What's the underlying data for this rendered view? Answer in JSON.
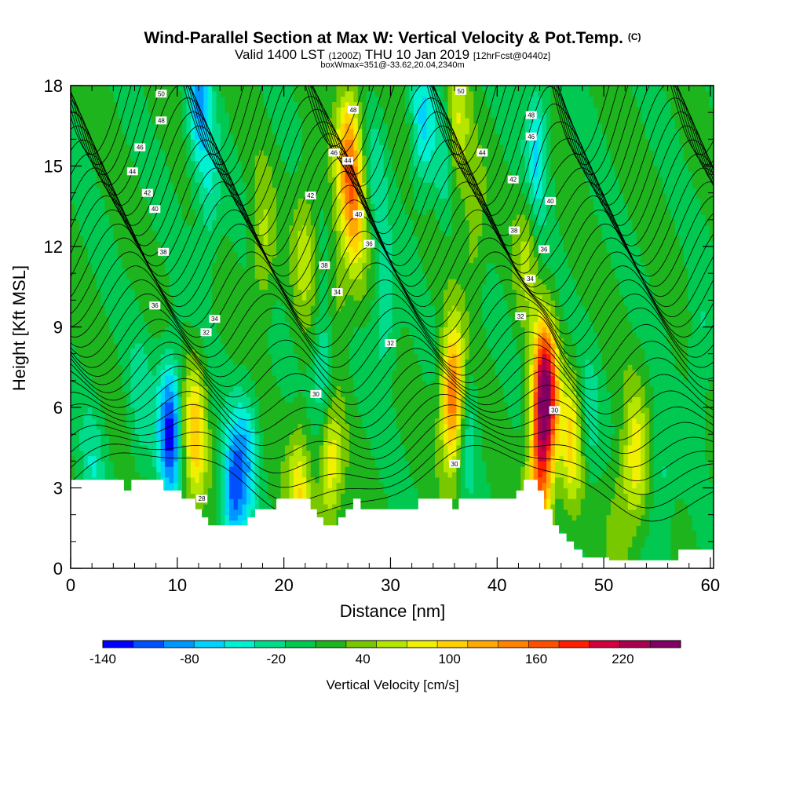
{
  "header": {
    "title": "Wind-Parallel Section at Max W: Vertical Velocity & Pot.Temp.",
    "copyright": "(C)",
    "valid_prefix": "Valid 1400 LST",
    "valid_utc": "(1200Z)",
    "valid_date": "THU 10 Jan 2019",
    "forecast": "[12hrFcst@0440z]",
    "box_info": "boxWmax=351@-33.62,20.04,2340m"
  },
  "chart_data": {
    "type": "heatmap",
    "xlabel": "Distance [nm]",
    "ylabel": "Height [Kft MSL]",
    "xlim": [
      0,
      60.3
    ],
    "ylim": [
      0,
      18
    ],
    "x_ticks": [
      "0",
      "10",
      "20",
      "30",
      "40",
      "50",
      "60"
    ],
    "y_ticks": [
      "0",
      "3",
      "6",
      "9",
      "12",
      "15",
      "18"
    ],
    "colorbar": {
      "label": "Vertical Velocity [cm/s]",
      "tick_labels": [
        "-140",
        "-80",
        "-20",
        "40",
        "100",
        "160",
        "220"
      ],
      "tick_values": [
        -140,
        -80,
        -20,
        40,
        100,
        160,
        220
      ],
      "range": [
        -140,
        260
      ],
      "colors": [
        "#0000ff",
        "#0050ff",
        "#0096ff",
        "#00d2ff",
        "#00f0d2",
        "#00dc8c",
        "#00c850",
        "#1eb41e",
        "#78c800",
        "#b4e600",
        "#f0f000",
        "#ffd200",
        "#ffaa00",
        "#ff8200",
        "#ff5000",
        "#ff1e00",
        "#d2003c",
        "#aa0050",
        "#820064"
      ]
    },
    "background_velocity": 10,
    "updrafts_downdrafts": [
      {
        "x": 9.3,
        "y": 5.2,
        "value": -125
      },
      {
        "x": 11.6,
        "y": 5.0,
        "value": 105
      },
      {
        "x": 15.2,
        "y": 2.8,
        "value": -95
      },
      {
        "x": 16.5,
        "y": 4.2,
        "value": -55
      },
      {
        "x": 21.5,
        "y": 2.8,
        "value": 85
      },
      {
        "x": 22.0,
        "y": 12.0,
        "value": 60
      },
      {
        "x": 23.8,
        "y": 7.2,
        "value": -55
      },
      {
        "x": 24.3,
        "y": 4.0,
        "value": 95
      },
      {
        "x": 26.0,
        "y": 15.5,
        "value": 125
      },
      {
        "x": 26.8,
        "y": 13.3,
        "value": 95
      },
      {
        "x": 25.0,
        "y": 10.0,
        "value": 45
      },
      {
        "x": 28.5,
        "y": 14.5,
        "value": -25
      },
      {
        "x": 29.5,
        "y": 9.5,
        "value": -35
      },
      {
        "x": 33.0,
        "y": 16.5,
        "value": -55
      },
      {
        "x": 35.3,
        "y": 15.5,
        "value": -45
      },
      {
        "x": 36.1,
        "y": 16.2,
        "value": 90
      },
      {
        "x": 35.9,
        "y": 6.3,
        "value": 175
      },
      {
        "x": 37.0,
        "y": 5.5,
        "value": -45
      },
      {
        "x": 37.8,
        "y": 12.5,
        "value": 45
      },
      {
        "x": 43.7,
        "y": 15.5,
        "value": -65
      },
      {
        "x": 42.8,
        "y": 12.0,
        "value": 55
      },
      {
        "x": 44.5,
        "y": 6.5,
        "value": 250
      },
      {
        "x": 44.0,
        "y": 3.2,
        "value": 140
      },
      {
        "x": 47.0,
        "y": 4.8,
        "value": 90
      },
      {
        "x": 48.5,
        "y": 5.5,
        "value": -25
      },
      {
        "x": 53.0,
        "y": 4.0,
        "value": 80
      },
      {
        "x": 51.5,
        "y": 2.0,
        "value": 45
      },
      {
        "x": 55.5,
        "y": 3.0,
        "value": -25
      },
      {
        "x": 59.0,
        "y": 8.0,
        "value": -20
      },
      {
        "x": 6.5,
        "y": 6.0,
        "value": -25
      },
      {
        "x": 13.0,
        "y": 14.0,
        "value": -35
      },
      {
        "x": 12.0,
        "y": 17.5,
        "value": -75
      },
      {
        "x": 18.0,
        "y": 12.0,
        "value": 55
      },
      {
        "x": 2.0,
        "y": 3.8,
        "value": -25
      }
    ],
    "isentrope_labels": [
      {
        "x": 8.5,
        "y": 17.7,
        "text": "50"
      },
      {
        "x": 8.5,
        "y": 16.7,
        "text": "48"
      },
      {
        "x": 6.5,
        "y": 15.7,
        "text": "46"
      },
      {
        "x": 5.8,
        "y": 14.8,
        "text": "44"
      },
      {
        "x": 7.2,
        "y": 14.0,
        "text": "42"
      },
      {
        "x": 7.9,
        "y": 13.4,
        "text": "40"
      },
      {
        "x": 8.7,
        "y": 11.8,
        "text": "38"
      },
      {
        "x": 7.9,
        "y": 9.8,
        "text": "36"
      },
      {
        "x": 13.5,
        "y": 9.3,
        "text": "34"
      },
      {
        "x": 12.7,
        "y": 8.8,
        "text": "32"
      },
      {
        "x": 22.5,
        "y": 13.9,
        "text": "42"
      },
      {
        "x": 23.8,
        "y": 11.3,
        "text": "38"
      },
      {
        "x": 25.0,
        "y": 10.3,
        "text": "34"
      },
      {
        "x": 26.5,
        "y": 17.1,
        "text": "48"
      },
      {
        "x": 24.7,
        "y": 15.5,
        "text": "46"
      },
      {
        "x": 26.0,
        "y": 15.2,
        "text": "44"
      },
      {
        "x": 27.0,
        "y": 13.2,
        "text": "40"
      },
      {
        "x": 28.0,
        "y": 12.1,
        "text": "36"
      },
      {
        "x": 30.0,
        "y": 8.4,
        "text": "32"
      },
      {
        "x": 23.0,
        "y": 6.5,
        "text": "30"
      },
      {
        "x": 36.6,
        "y": 17.8,
        "text": "50"
      },
      {
        "x": 38.6,
        "y": 15.5,
        "text": "44"
      },
      {
        "x": 41.5,
        "y": 14.5,
        "text": "42"
      },
      {
        "x": 41.6,
        "y": 12.6,
        "text": "38"
      },
      {
        "x": 43.2,
        "y": 16.9,
        "text": "48"
      },
      {
        "x": 43.2,
        "y": 16.1,
        "text": "46"
      },
      {
        "x": 45.0,
        "y": 13.7,
        "text": "40"
      },
      {
        "x": 44.4,
        "y": 11.9,
        "text": "36"
      },
      {
        "x": 43.1,
        "y": 10.8,
        "text": "34"
      },
      {
        "x": 42.2,
        "y": 9.4,
        "text": "32"
      },
      {
        "x": 36.0,
        "y": 3.9,
        "text": "30"
      },
      {
        "x": 45.4,
        "y": 5.9,
        "text": "30"
      },
      {
        "x": 12.3,
        "y": 2.6,
        "text": "28"
      }
    ]
  }
}
